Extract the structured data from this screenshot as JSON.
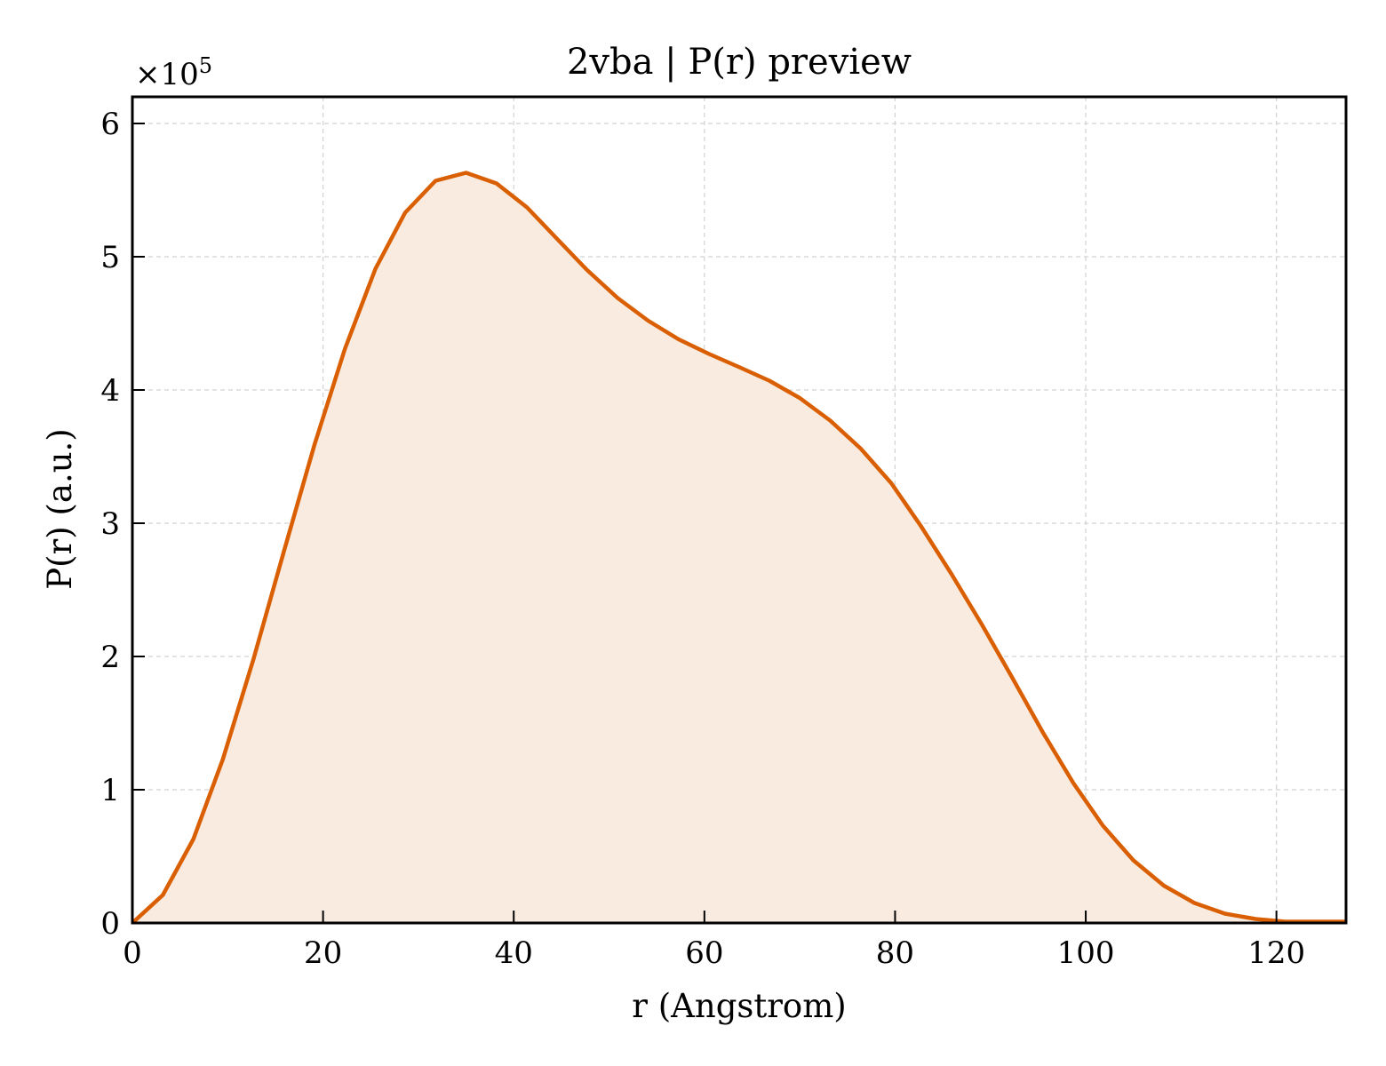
{
  "colors": {
    "line": "#d95f02",
    "fill": "#f9ebe0"
  },
  "chart_data": {
    "type": "area",
    "title": "2vba | P(r) preview",
    "xlabel": "r (Angstrom)",
    "ylabel": "P(r) (a.u.)",
    "y_multiplier": "×10",
    "y_multiplier_exp": "5",
    "xlim": [
      0,
      127.3
    ],
    "ylim": [
      0,
      6.2
    ],
    "xticks": [
      0,
      20,
      40,
      60,
      80,
      100,
      120
    ],
    "xtick_labels": [
      "0",
      "20",
      "40",
      "60",
      "80",
      "100",
      "120"
    ],
    "yticks": [
      0,
      1,
      2,
      3,
      4,
      5,
      6
    ],
    "ytick_labels": [
      "0",
      "1",
      "2",
      "3",
      "4",
      "5",
      "6"
    ],
    "grid": true,
    "series": [
      {
        "x": [
          0,
          3.2,
          6.4,
          9.5,
          12.7,
          15.9,
          19.1,
          22.3,
          25.5,
          28.6,
          31.8,
          35.0,
          38.2,
          41.4,
          44.6,
          47.7,
          50.9,
          54.1,
          57.3,
          60.5,
          63.7,
          66.8,
          70.0,
          73.2,
          76.4,
          79.6,
          82.7,
          85.9,
          89.1,
          92.3,
          95.5,
          98.7,
          101.8,
          105.0,
          108.2,
          111.4,
          114.6,
          117.8,
          120.9,
          124.1,
          127.3
        ],
        "values": [
          0,
          0.21,
          0.63,
          1.23,
          1.98,
          2.79,
          3.59,
          4.31,
          4.91,
          5.33,
          5.57,
          5.63,
          5.55,
          5.37,
          5.13,
          4.9,
          4.69,
          4.52,
          4.38,
          4.27,
          4.17,
          4.07,
          3.94,
          3.77,
          3.56,
          3.3,
          2.98,
          2.62,
          2.24,
          1.84,
          1.43,
          1.05,
          0.73,
          0.47,
          0.28,
          0.15,
          0.07,
          0.03,
          0.01,
          0.01,
          0.01
        ]
      }
    ]
  }
}
